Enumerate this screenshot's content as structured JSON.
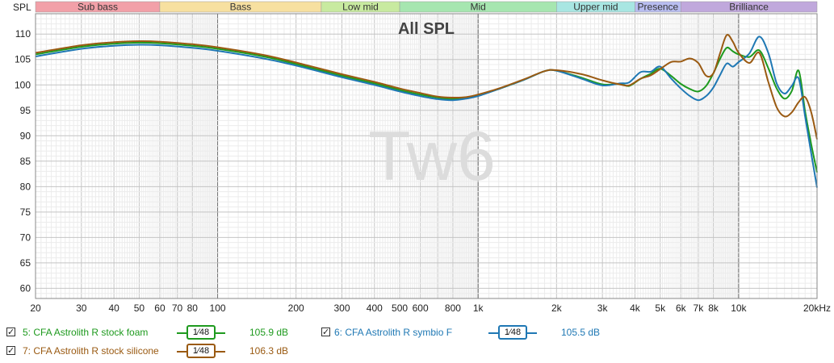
{
  "chart_data": {
    "type": "line",
    "title": "All SPL",
    "watermark": "Tw6",
    "ylabel": "SPL",
    "xscale": "log",
    "xlim": [
      20,
      20000
    ],
    "ylim": [
      58,
      114
    ],
    "grid": true,
    "y_ticks": [
      60,
      65,
      70,
      75,
      80,
      85,
      90,
      95,
      100,
      105,
      110
    ],
    "x_ticks": [
      {
        "v": 20,
        "label": "20"
      },
      {
        "v": 30,
        "label": "30"
      },
      {
        "v": 40,
        "label": "40"
      },
      {
        "v": 50,
        "label": "50"
      },
      {
        "v": 60,
        "label": "60"
      },
      {
        "v": 70,
        "label": "70"
      },
      {
        "v": 80,
        "label": "80"
      },
      {
        "v": 100,
        "label": "100"
      },
      {
        "v": 200,
        "label": "200"
      },
      {
        "v": 300,
        "label": "300"
      },
      {
        "v": 400,
        "label": "400"
      },
      {
        "v": 500,
        "label": "500"
      },
      {
        "v": 600,
        "label": "600"
      },
      {
        "v": 800,
        "label": "800"
      },
      {
        "v": 1000,
        "label": "1k"
      },
      {
        "v": 2000,
        "label": "2k"
      },
      {
        "v": 3000,
        "label": "3k"
      },
      {
        "v": 4000,
        "label": "4k"
      },
      {
        "v": 5000,
        "label": "5k"
      },
      {
        "v": 6000,
        "label": "6k"
      },
      {
        "v": 7000,
        "label": "7k"
      },
      {
        "v": 8000,
        "label": "8k"
      },
      {
        "v": 10000,
        "label": "10k"
      },
      {
        "v": 20000,
        "label": "20kHz"
      }
    ],
    "bands": [
      {
        "label": "Sub bass",
        "from": 20,
        "to": 60,
        "color": "#f2a0a8"
      },
      {
        "label": "Bass",
        "from": 60,
        "to": 250,
        "color": "#f7e0a0"
      },
      {
        "label": "Low mid",
        "from": 250,
        "to": 500,
        "color": "#c8eaa0"
      },
      {
        "label": "Mid",
        "from": 500,
        "to": 2000,
        "color": "#a6e6b0"
      },
      {
        "label": "Upper mid",
        "from": 2000,
        "to": 4000,
        "color": "#a8e6e2"
      },
      {
        "label": "Presence",
        "from": 4000,
        "to": 6000,
        "color": "#b8bdf0"
      },
      {
        "label": "Brilliance",
        "from": 6000,
        "to": 20000,
        "color": "#c0a8dc"
      }
    ],
    "series": [
      {
        "name": "5: CFA Astrolith R stock foam",
        "color": "#1e9a1e",
        "points": [
          [
            20,
            106
          ],
          [
            30,
            107.5
          ],
          [
            40,
            108.1
          ],
          [
            50,
            108.3
          ],
          [
            60,
            108.2
          ],
          [
            80,
            107.7
          ],
          [
            100,
            107.1
          ],
          [
            150,
            105.6
          ],
          [
            200,
            104.1
          ],
          [
            300,
            101.8
          ],
          [
            400,
            100.3
          ],
          [
            500,
            99
          ],
          [
            600,
            98.1
          ],
          [
            700,
            97.5
          ],
          [
            800,
            97.2
          ],
          [
            900,
            97.4
          ],
          [
            1000,
            97.9
          ],
          [
            1200,
            99.2
          ],
          [
            1500,
            101
          ],
          [
            1800,
            102.7
          ],
          [
            2000,
            102.8
          ],
          [
            2500,
            101.4
          ],
          [
            3000,
            100.1
          ],
          [
            3500,
            100.2
          ],
          [
            3800,
            99.8
          ],
          [
            4200,
            101.2
          ],
          [
            4600,
            102.2
          ],
          [
            5000,
            103.2
          ],
          [
            5500,
            101.8
          ],
          [
            6000,
            100.2
          ],
          [
            6500,
            99.2
          ],
          [
            7000,
            98.7
          ],
          [
            7500,
            99.8
          ],
          [
            8000,
            102.3
          ],
          [
            8500,
            105.2
          ],
          [
            9000,
            107.3
          ],
          [
            9500,
            106.6
          ],
          [
            10000,
            106
          ],
          [
            11000,
            105.5
          ],
          [
            12000,
            106.8
          ],
          [
            13000,
            103.3
          ],
          [
            14000,
            99.3
          ],
          [
            15000,
            97.3
          ],
          [
            16000,
            98.8
          ],
          [
            17000,
            102.8
          ],
          [
            18000,
            94.8
          ],
          [
            19000,
            88.3
          ],
          [
            20000,
            82.8
          ]
        ]
      },
      {
        "name": "6: CFA Astrolith R symbio F",
        "color": "#1f78b4",
        "points": [
          [
            20,
            105.6
          ],
          [
            30,
            107.1
          ],
          [
            40,
            107.7
          ],
          [
            50,
            107.9
          ],
          [
            60,
            107.8
          ],
          [
            80,
            107.3
          ],
          [
            100,
            106.7
          ],
          [
            150,
            105.2
          ],
          [
            200,
            103.8
          ],
          [
            300,
            101.5
          ],
          [
            400,
            100
          ],
          [
            500,
            98.7
          ],
          [
            600,
            97.8
          ],
          [
            700,
            97.2
          ],
          [
            800,
            97
          ],
          [
            900,
            97.3
          ],
          [
            1000,
            97.8
          ],
          [
            1200,
            99.2
          ],
          [
            1500,
            101
          ],
          [
            1800,
            102.7
          ],
          [
            2000,
            102.8
          ],
          [
            2500,
            101.2
          ],
          [
            3000,
            99.9
          ],
          [
            3500,
            100.3
          ],
          [
            3800,
            100.5
          ],
          [
            4200,
            102.5
          ],
          [
            4600,
            102.6
          ],
          [
            5000,
            103.6
          ],
          [
            5500,
            101.3
          ],
          [
            6000,
            99.3
          ],
          [
            6500,
            97.8
          ],
          [
            7000,
            97
          ],
          [
            7500,
            97.8
          ],
          [
            8000,
            99.5
          ],
          [
            8500,
            102
          ],
          [
            9000,
            104.2
          ],
          [
            9500,
            103.6
          ],
          [
            10000,
            104.5
          ],
          [
            11000,
            106.2
          ],
          [
            12000,
            109.5
          ],
          [
            13000,
            106.3
          ],
          [
            14000,
            100.3
          ],
          [
            15000,
            98.3
          ],
          [
            16000,
            99.8
          ],
          [
            17000,
            101.3
          ],
          [
            18000,
            93.8
          ],
          [
            19000,
            86.5
          ],
          [
            20000,
            79.8
          ]
        ]
      },
      {
        "name": "7: CFA Astrolith R stock silicone",
        "color": "#9a5a12",
        "points": [
          [
            20,
            106.3
          ],
          [
            30,
            107.8
          ],
          [
            40,
            108.4
          ],
          [
            50,
            108.6
          ],
          [
            60,
            108.5
          ],
          [
            80,
            108
          ],
          [
            100,
            107.4
          ],
          [
            150,
            105.9
          ],
          [
            200,
            104.4
          ],
          [
            300,
            102.1
          ],
          [
            400,
            100.6
          ],
          [
            500,
            99.3
          ],
          [
            600,
            98.4
          ],
          [
            700,
            97.7
          ],
          [
            800,
            97.5
          ],
          [
            900,
            97.6
          ],
          [
            1000,
            98.1
          ],
          [
            1200,
            99.3
          ],
          [
            1500,
            101.1
          ],
          [
            1800,
            102.7
          ],
          [
            2000,
            102.9
          ],
          [
            2500,
            102.1
          ],
          [
            3000,
            100.9
          ],
          [
            3500,
            100.1
          ],
          [
            3800,
            99.9
          ],
          [
            4200,
            101.2
          ],
          [
            4600,
            101.9
          ],
          [
            5000,
            103.1
          ],
          [
            5500,
            104.5
          ],
          [
            6000,
            104.6
          ],
          [
            6500,
            105.2
          ],
          [
            7000,
            104.3
          ],
          [
            7500,
            101.8
          ],
          [
            8000,
            102.3
          ],
          [
            8500,
            106.3
          ],
          [
            9000,
            109.8
          ],
          [
            9500,
            108.5
          ],
          [
            10000,
            106.3
          ],
          [
            11000,
            104.3
          ],
          [
            12000,
            106.3
          ],
          [
            13000,
            100.6
          ],
          [
            14000,
            95.6
          ],
          [
            15000,
            93.8
          ],
          [
            16000,
            94.6
          ],
          [
            17000,
            96.6
          ],
          [
            18000,
            97.6
          ],
          [
            19000,
            94.6
          ],
          [
            20000,
            89.3
          ]
        ]
      }
    ]
  },
  "legend": [
    {
      "label": "5: CFA Astrolith R stock foam",
      "color": "#1e9a1e",
      "smoothing": "1⁄48",
      "value": "105.9 dB",
      "checked": "✓"
    },
    {
      "label": "6: CFA Astrolith R symbio F",
      "color": "#1f78b4",
      "smoothing": "1⁄48",
      "value": "105.5 dB",
      "checked": "✓"
    },
    {
      "label": "7: CFA Astrolith R stock silicone",
      "color": "#9a5a12",
      "smoothing": "1⁄48",
      "value": "106.3 dB",
      "checked": "✓"
    }
  ]
}
